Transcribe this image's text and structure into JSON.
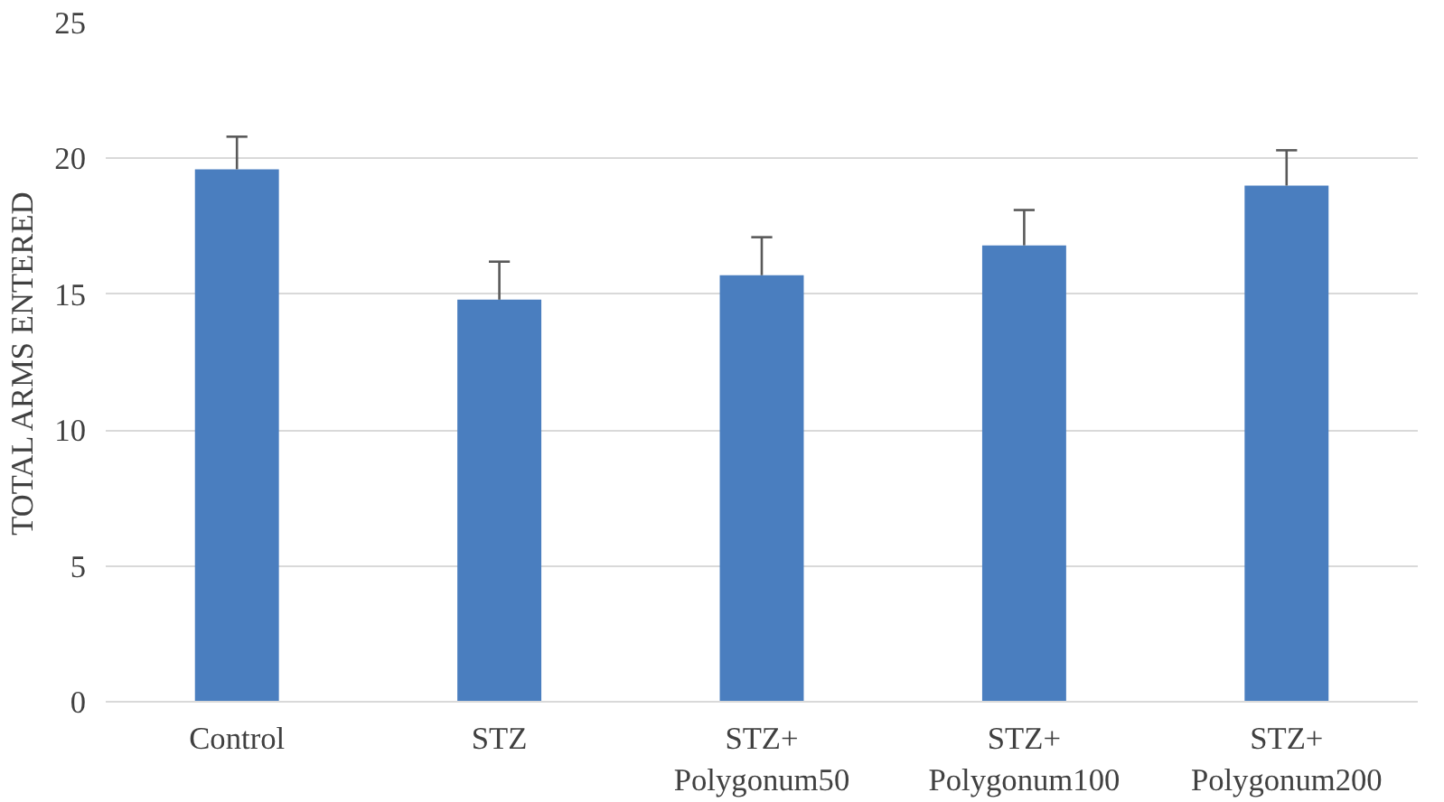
{
  "chart_data": {
    "type": "bar",
    "ylabel": "TOTAL ARMS ENTERED",
    "categories": [
      "Control",
      "STZ",
      "STZ+\nPolygonum50",
      "STZ+\nPolygonum100",
      "STZ+\nPolygonum200"
    ],
    "values": [
      19.6,
      14.8,
      15.7,
      16.8,
      19.0
    ],
    "errors": [
      [
        19.6,
        20.8
      ],
      [
        14.8,
        16.2
      ],
      [
        15.7,
        17.1
      ],
      [
        16.8,
        18.1
      ],
      [
        19.0,
        20.3
      ]
    ],
    "color": "#4a7ebf",
    "ylim": [
      0,
      25
    ],
    "yticks": [
      0,
      5,
      10,
      15,
      20,
      25
    ],
    "grid": "y"
  }
}
